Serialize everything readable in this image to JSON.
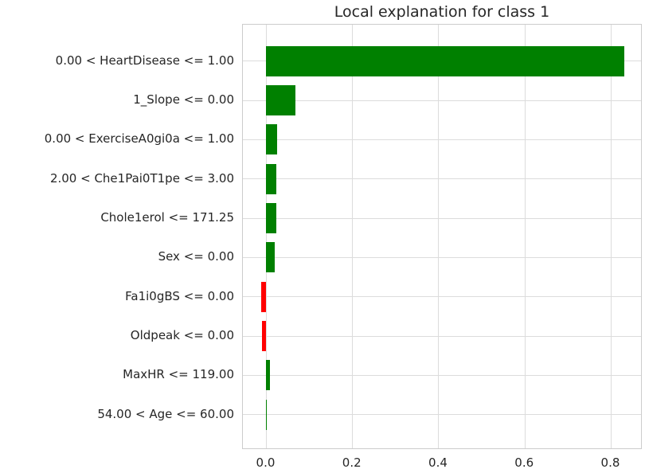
{
  "chart_data": {
    "type": "bar",
    "orientation": "horizontal",
    "title": "Local explanation for class 1",
    "categories": [
      "0.00 < HeartDisease <= 1.00",
      "1_Slope <= 0.00",
      "0.00 < ExerciseA0gi0a <= 1.00",
      "2.00 < Che1Pai0T1pe <= 3.00",
      "Chole1erol <= 171.25",
      "Sex <= 0.00",
      "Fa1i0gBS <= 0.00",
      "Oldpeak <= 0.00",
      "MaxHR <= 119.00",
      "54.00 < Age <= 60.00"
    ],
    "values": [
      0.83,
      0.067,
      0.025,
      0.024,
      0.024,
      0.02,
      -0.012,
      -0.01,
      0.008,
      0.001
    ],
    "xticks": [
      0.0,
      0.2,
      0.4,
      0.6,
      0.8
    ],
    "xtick_labels": [
      "0.0",
      "0.2",
      "0.4",
      "0.6",
      "0.8"
    ],
    "xlim": [
      -0.0545,
      0.873
    ],
    "positive_color": "#008000",
    "negative_color": "#ff0000",
    "grid": true,
    "grid_color": "#dcdcdc",
    "spine_color": "#cccccc",
    "legend": "none"
  }
}
